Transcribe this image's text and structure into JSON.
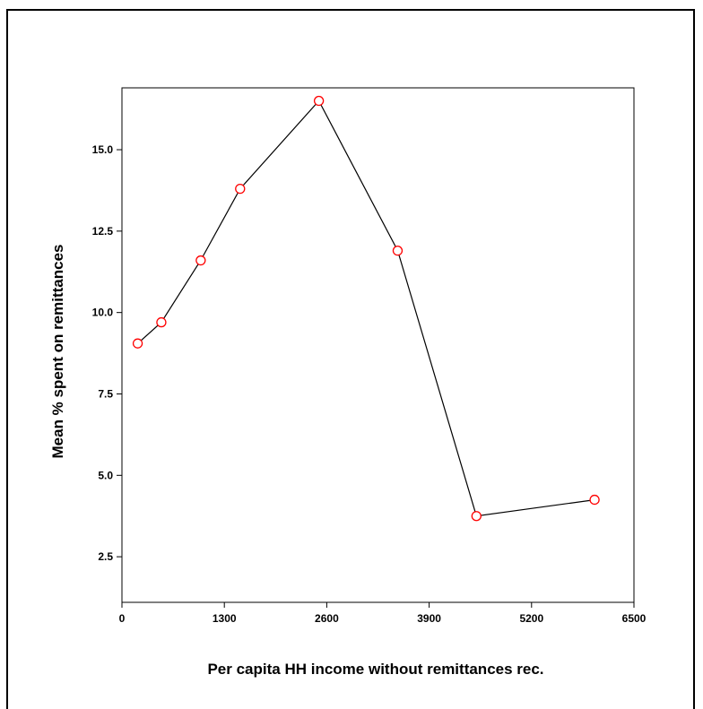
{
  "chart_data": {
    "type": "line",
    "title": "",
    "xlabel": "Per capita HH income without remittances rec.",
    "ylabel": "Mean % spent on remittances",
    "xlim": [
      0,
      6500
    ],
    "ylim": [
      1.1,
      16.9
    ],
    "x_ticks": [
      "0",
      "1300",
      "2600",
      "3900",
      "5200",
      "6500"
    ],
    "y_ticks": [
      "2.5",
      "5.0",
      "7.5",
      "10.0",
      "12.5",
      "15.0"
    ],
    "grid": false,
    "legend": "none",
    "line_color": "#000000",
    "marker_color": "#ff0000",
    "marker": "open-circle",
    "series": [
      {
        "x": [
          200,
          500,
          1000,
          1500,
          2500,
          3500,
          4500,
          6000
        ],
        "y": [
          9.05,
          9.7,
          11.6,
          13.8,
          16.5,
          11.9,
          3.75,
          4.25
        ]
      }
    ]
  }
}
